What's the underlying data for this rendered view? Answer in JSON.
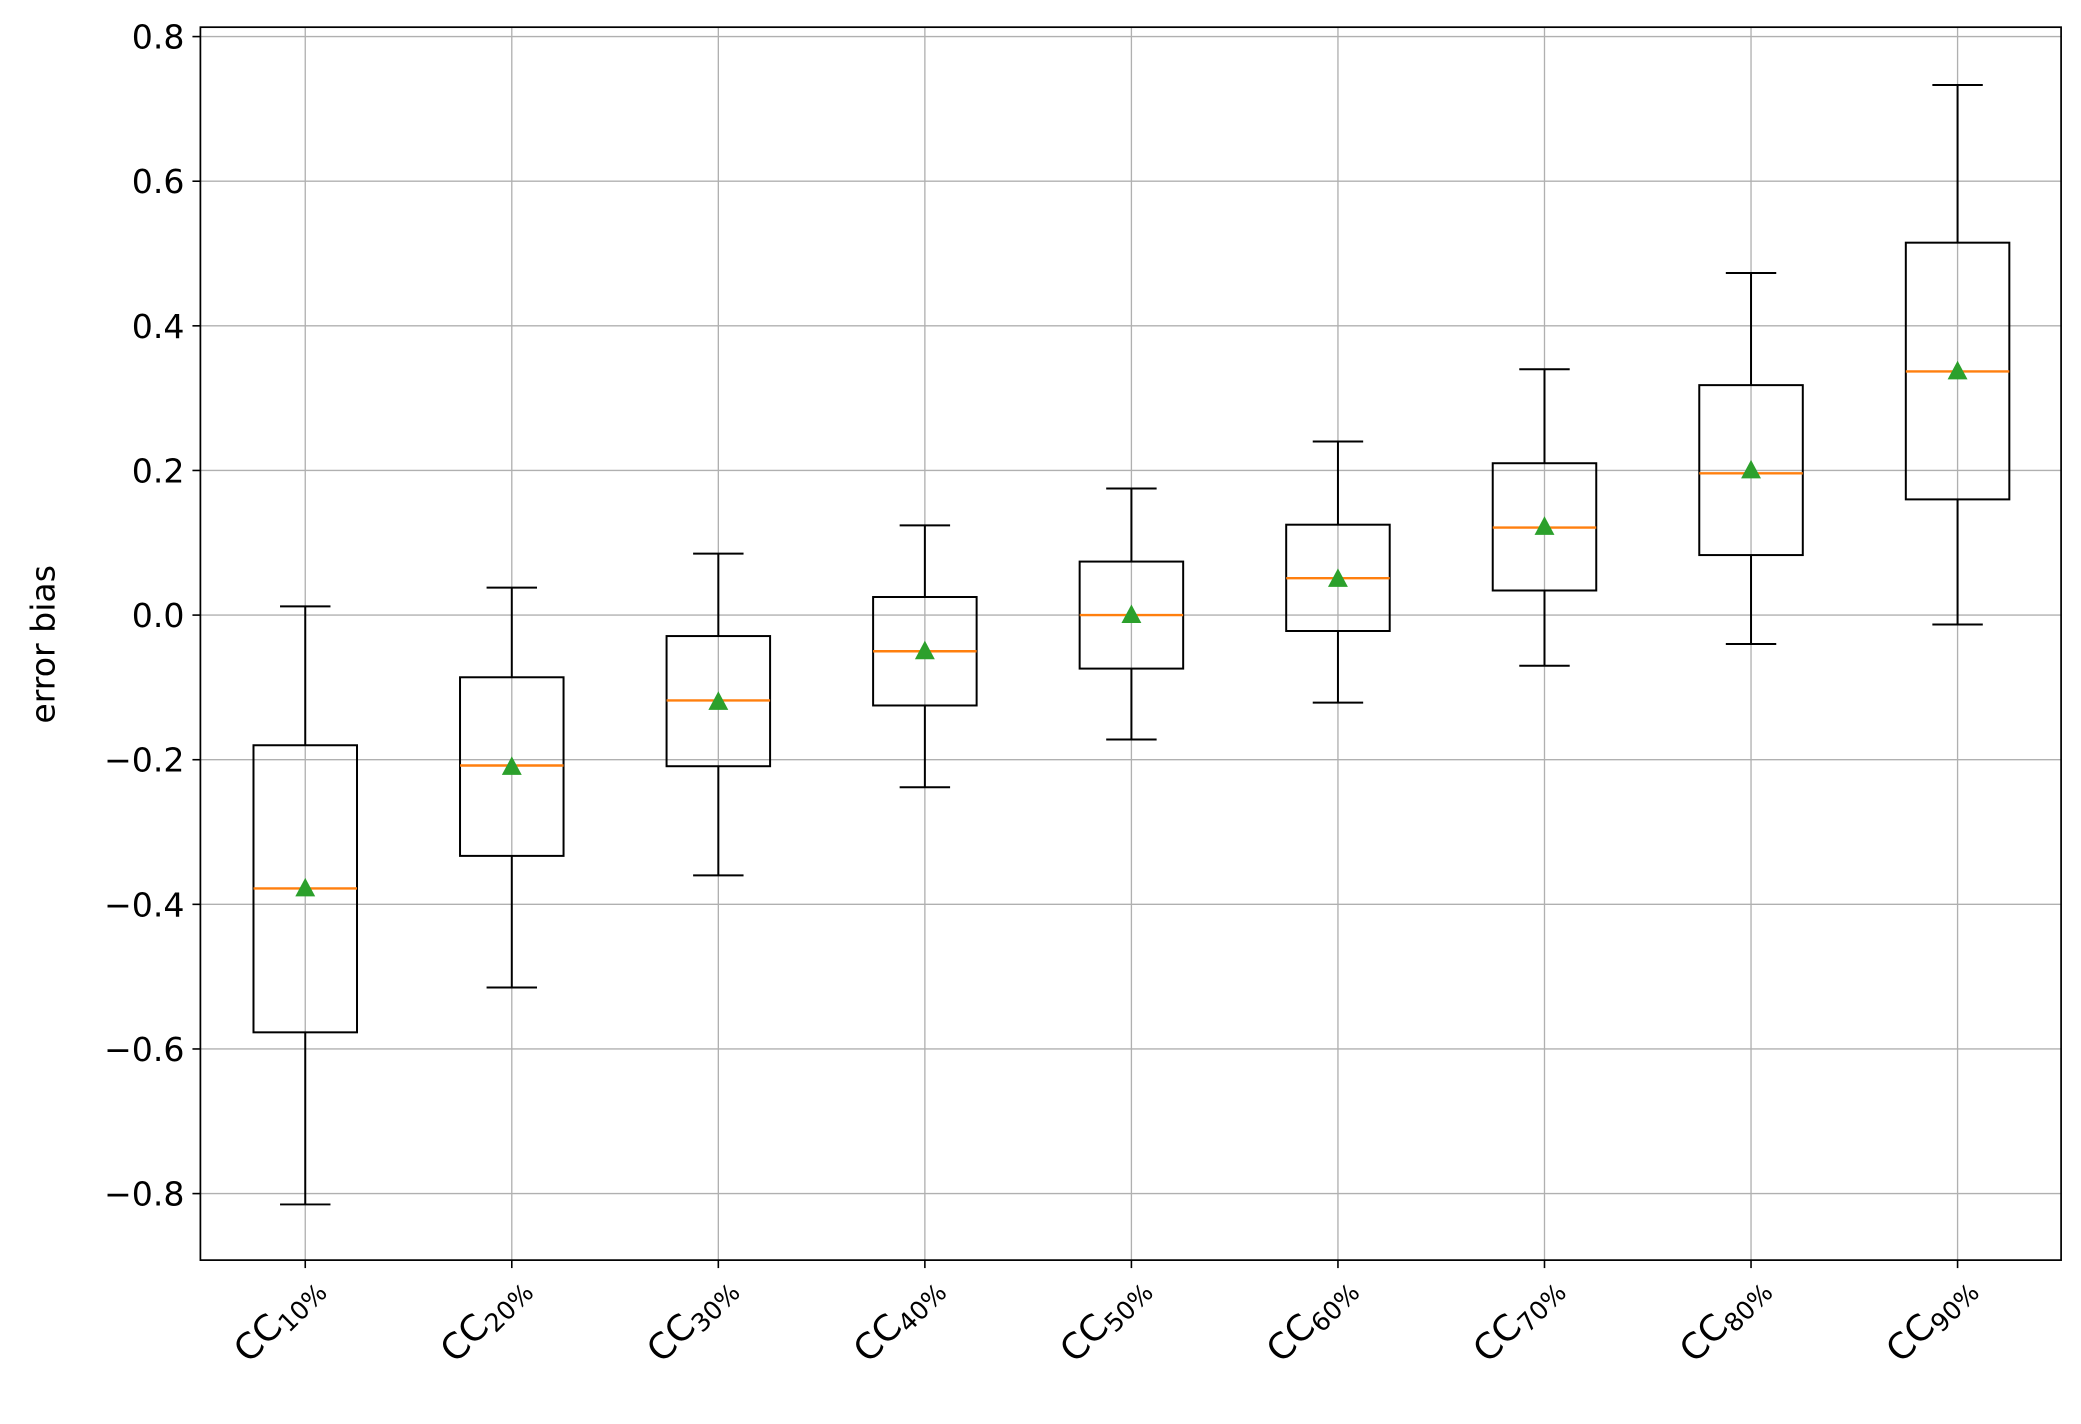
{
  "chart_data": {
    "type": "box",
    "title": "",
    "xlabel": "",
    "ylabel": "error bias",
    "ylim": [
      -0.892,
      0.813
    ],
    "yticks": [
      -0.8,
      -0.6,
      -0.4,
      -0.2,
      0.0,
      0.2,
      0.4,
      0.6,
      0.8
    ],
    "ytick_labels": [
      "−0.8",
      "−0.6",
      "−0.4",
      "−0.2",
      "0.0",
      "0.2",
      "0.4",
      "0.6",
      "0.8"
    ],
    "grid": true,
    "categories": [
      {
        "base": "CC",
        "sub": "10%"
      },
      {
        "base": "CC",
        "sub": "20%"
      },
      {
        "base": "CC",
        "sub": "30%"
      },
      {
        "base": "CC",
        "sub": "40%"
      },
      {
        "base": "CC",
        "sub": "50%"
      },
      {
        "base": "CC",
        "sub": "60%"
      },
      {
        "base": "CC",
        "sub": "70%"
      },
      {
        "base": "CC",
        "sub": "80%"
      },
      {
        "base": "CC",
        "sub": "90%"
      }
    ],
    "boxes": [
      {
        "whisker_low": -0.815,
        "q1": -0.577,
        "median": -0.378,
        "mean": -0.378,
        "q3": -0.18,
        "whisker_high": 0.012
      },
      {
        "whisker_low": -0.515,
        "q1": -0.333,
        "median": -0.208,
        "mean": -0.21,
        "q3": -0.086,
        "whisker_high": 0.038
      },
      {
        "whisker_low": -0.36,
        "q1": -0.209,
        "median": -0.118,
        "mean": -0.12,
        "q3": -0.029,
        "whisker_high": 0.085
      },
      {
        "whisker_low": -0.238,
        "q1": -0.125,
        "median": -0.05,
        "mean": -0.05,
        "q3": 0.025,
        "whisker_high": 0.124
      },
      {
        "whisker_low": -0.172,
        "q1": -0.074,
        "median": 0.0,
        "mean": 0.0,
        "q3": 0.074,
        "whisker_high": 0.175
      },
      {
        "whisker_low": -0.121,
        "q1": -0.022,
        "median": 0.051,
        "mean": 0.05,
        "q3": 0.125,
        "whisker_high": 0.24
      },
      {
        "whisker_low": -0.07,
        "q1": 0.034,
        "median": 0.121,
        "mean": 0.122,
        "q3": 0.21,
        "whisker_high": 0.34
      },
      {
        "whisker_low": -0.04,
        "q1": 0.083,
        "median": 0.196,
        "mean": 0.2,
        "q3": 0.318,
        "whisker_high": 0.473
      },
      {
        "whisker_low": -0.013,
        "q1": 0.16,
        "median": 0.337,
        "mean": 0.337,
        "q3": 0.515,
        "whisker_high": 0.733
      }
    ],
    "colors": {
      "box": "#000000",
      "median": "#ff7f0e",
      "mean": "#2ca02c",
      "grid": "#b0b0b0"
    }
  }
}
